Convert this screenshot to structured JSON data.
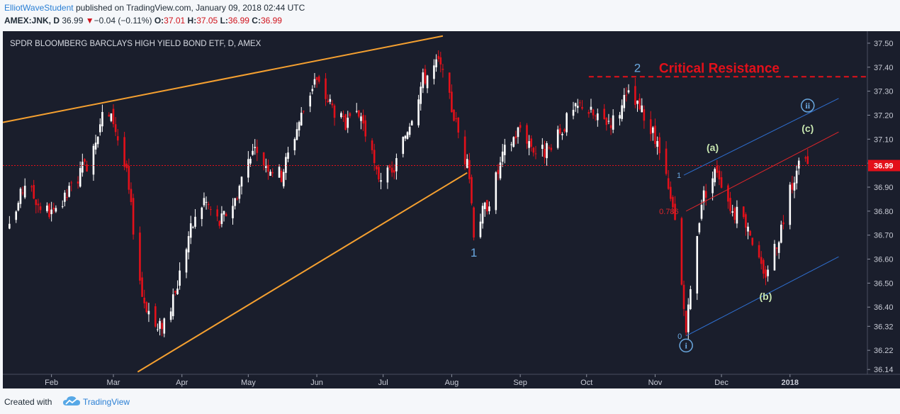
{
  "header": {
    "author": "ElliotWaveStudent",
    "published_text": "published on TradingView.com, January 09, 2018 02:44 UTC",
    "symbol": "AMEX:JNK, D",
    "last": "36.99",
    "change_arrow": "▼",
    "change": "−0.04 (−0.11%)",
    "o_label": "O:",
    "o_value": "37.01",
    "h_label": "H:",
    "h_value": "37.05",
    "l_label": "L:",
    "l_value": "36.99",
    "c_label": "C:",
    "c_value": "36.99"
  },
  "footer": {
    "created_with": "Created with",
    "brand": "TradingView"
  },
  "colors": {
    "background": "#1a1e2c",
    "up": "#ffffff",
    "down": "#e3101a",
    "trendline": "#f5a030",
    "channel": "#2f6fd0",
    "channel_mid": "#e0252a",
    "resistance": "#e3101a",
    "wave_blue": "#6aa8e0",
    "wave_green": "#c8e6b0"
  },
  "chart_data": {
    "type": "candlestick",
    "title": "SPDR BLOOMBERG BARCLAYS HIGH YIELD BOND ETF, D, AMEX",
    "x_tick_labels": [
      "Feb",
      "Mar",
      "Apr",
      "May",
      "Jun",
      "Jul",
      "Aug",
      "Sep",
      "Oct",
      "Nov",
      "Dec",
      "2018"
    ],
    "x_tick_dates": [
      "2017-02-01",
      "2017-03-01",
      "2017-04-01",
      "2017-05-01",
      "2017-06-01",
      "2017-07-01",
      "2017-08-01",
      "2017-09-01",
      "2017-10-01",
      "2017-11-01",
      "2017-12-01",
      "2018-01-01"
    ],
    "x_range": [
      "2017-01-10",
      "2018-02-05"
    ],
    "y_ticks": [
      "37.50",
      "37.40",
      "37.30",
      "37.20",
      "37.10",
      "37.00",
      "36.90",
      "36.80",
      "36.70",
      "36.60",
      "36.50",
      "36.40",
      "36.32",
      "36.22",
      "36.14"
    ],
    "y_range": [
      36.12,
      37.55
    ],
    "last_price": "36.99",
    "price_anchors": [
      {
        "date": "2017-01-13",
        "price": 36.72
      },
      {
        "date": "2017-01-20",
        "price": 36.92
      },
      {
        "date": "2017-01-27",
        "price": 36.82
      },
      {
        "date": "2017-02-03",
        "price": 36.78
      },
      {
        "date": "2017-02-10",
        "price": 36.9
      },
      {
        "date": "2017-02-17",
        "price": 37.0
      },
      {
        "date": "2017-02-24",
        "price": 37.2
      },
      {
        "date": "2017-03-01",
        "price": 37.18
      },
      {
        "date": "2017-03-07",
        "price": 36.95
      },
      {
        "date": "2017-03-14",
        "price": 36.45
      },
      {
        "date": "2017-03-21",
        "price": 36.3
      },
      {
        "date": "2017-03-28",
        "price": 36.42
      },
      {
        "date": "2017-04-04",
        "price": 36.7
      },
      {
        "date": "2017-04-11",
        "price": 36.85
      },
      {
        "date": "2017-04-18",
        "price": 36.75
      },
      {
        "date": "2017-04-25",
        "price": 36.85
      },
      {
        "date": "2017-05-02",
        "price": 37.05
      },
      {
        "date": "2017-05-09",
        "price": 37.0
      },
      {
        "date": "2017-05-16",
        "price": 36.95
      },
      {
        "date": "2017-05-23",
        "price": 37.15
      },
      {
        "date": "2017-05-31",
        "price": 37.35
      },
      {
        "date": "2017-06-07",
        "price": 37.25
      },
      {
        "date": "2017-06-14",
        "price": 37.15
      },
      {
        "date": "2017-06-21",
        "price": 37.2
      },
      {
        "date": "2017-06-28",
        "price": 36.95
      },
      {
        "date": "2017-07-05",
        "price": 36.95
      },
      {
        "date": "2017-07-12",
        "price": 37.15
      },
      {
        "date": "2017-07-19",
        "price": 37.35
      },
      {
        "date": "2017-07-26",
        "price": 37.42
      },
      {
        "date": "2017-08-02",
        "price": 37.2
      },
      {
        "date": "2017-08-09",
        "price": 36.95
      },
      {
        "date": "2017-08-11",
        "price": 36.72
      },
      {
        "date": "2017-08-18",
        "price": 36.85
      },
      {
        "date": "2017-08-25",
        "price": 37.05
      },
      {
        "date": "2017-09-01",
        "price": 37.15
      },
      {
        "date": "2017-09-08",
        "price": 37.05
      },
      {
        "date": "2017-09-15",
        "price": 37.05
      },
      {
        "date": "2017-09-22",
        "price": 37.18
      },
      {
        "date": "2017-09-29",
        "price": 37.25
      },
      {
        "date": "2017-10-06",
        "price": 37.18
      },
      {
        "date": "2017-10-13",
        "price": 37.18
      },
      {
        "date": "2017-10-20",
        "price": 37.28
      },
      {
        "date": "2017-10-27",
        "price": 37.2
      },
      {
        "date": "2017-11-03",
        "price": 37.05
      },
      {
        "date": "2017-11-10",
        "price": 36.75
      },
      {
        "date": "2017-11-15",
        "price": 36.3
      },
      {
        "date": "2017-11-22",
        "price": 36.85
      },
      {
        "date": "2017-11-29",
        "price": 36.98
      },
      {
        "date": "2017-12-06",
        "price": 36.8
      },
      {
        "date": "2017-12-13",
        "price": 36.75
      },
      {
        "date": "2017-12-20",
        "price": 36.52
      },
      {
        "date": "2017-12-27",
        "price": 36.7
      },
      {
        "date": "2018-01-03",
        "price": 36.95
      },
      {
        "date": "2018-01-08",
        "price": 37.02
      },
      {
        "date": "2018-01-09",
        "price": 36.99
      }
    ]
  },
  "annotations": {
    "critical_resistance": "Critical Resistance",
    "wave_1": "1",
    "wave_2": "2",
    "wave_a": "(a)",
    "wave_b": "(b)",
    "wave_c": "(c)",
    "wave_i": "i",
    "wave_ii": "ii",
    "fib_0": "0",
    "fib_1": "1",
    "fib_786": "0.786"
  }
}
